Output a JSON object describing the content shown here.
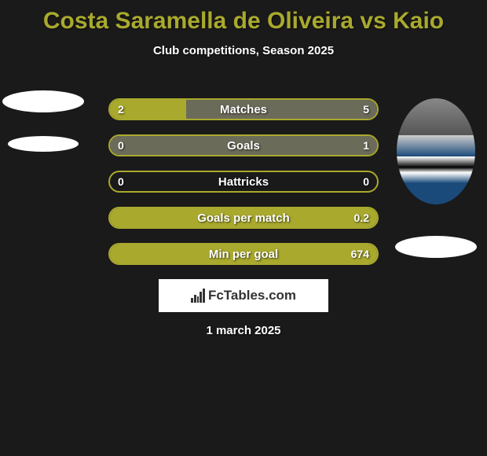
{
  "title": "Costa Saramella de Oliveira vs Kaio",
  "subtitle": "Club competitions, Season 2025",
  "date": "1 march 2025",
  "logo_text": "FcTables.com",
  "colors": {
    "accent": "#a9a92e",
    "fill_yellow": "#a9a92e",
    "fill_gray": "#6b6b5a",
    "background": "#1a1a1a",
    "text": "#ffffff"
  },
  "bars": [
    {
      "label": "Matches",
      "left_val": "2",
      "right_val": "5",
      "left_pct": 28.6,
      "right_pct": 71.4,
      "left_color": "#a9a92e",
      "right_color": "#6b6b5a"
    },
    {
      "label": "Goals",
      "left_val": "0",
      "right_val": "1",
      "left_pct": 0,
      "right_pct": 100,
      "left_color": "#a9a92e",
      "right_color": "#6b6b5a"
    },
    {
      "label": "Hattricks",
      "left_val": "0",
      "right_val": "0",
      "left_pct": 0,
      "right_pct": 0,
      "left_color": "#a9a92e",
      "right_color": "#6b6b5a"
    },
    {
      "label": "Goals per match",
      "left_val": "",
      "right_val": "0.2",
      "left_pct": 0,
      "right_pct": 100,
      "left_color": "#a9a92e",
      "right_color": "#a9a92e"
    },
    {
      "label": "Min per goal",
      "left_val": "",
      "right_val": "674",
      "left_pct": 0,
      "right_pct": 100,
      "left_color": "#a9a92e",
      "right_color": "#a9a92e"
    }
  ]
}
